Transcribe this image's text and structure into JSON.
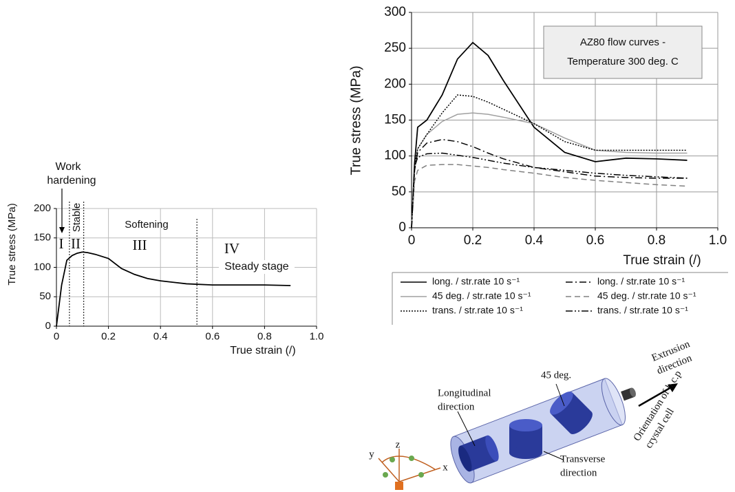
{
  "chart_data": [
    {
      "type": "line",
      "x_label": "True strain (/)",
      "y_label": "True stress (MPa)",
      "xlim": [
        0,
        1
      ],
      "ylim": [
        0,
        200
      ],
      "xticks": [
        0,
        0.2,
        0.4,
        0.6,
        0.8,
        {
          "value": 1,
          "label": "1.0"
        }
      ],
      "yticks": [
        0,
        50,
        100,
        150,
        200
      ],
      "grid": true,
      "x": [
        0,
        0.02,
        0.04,
        0.06,
        0.08,
        0.1,
        0.12,
        0.15,
        0.2,
        0.25,
        0.3,
        0.35,
        0.4,
        0.5,
        0.6,
        0.7,
        0.8,
        0.9
      ],
      "values": [
        0,
        70,
        112,
        120,
        124,
        126,
        125,
        122,
        115,
        98,
        88,
        81,
        77,
        72,
        70,
        70,
        70,
        69
      ],
      "color": "#000000",
      "boundaries": [
        0.05,
        0.105,
        0.54
      ],
      "annotations": [
        "Work",
        "hardening",
        "Stable",
        "Softening",
        "I",
        "II",
        "III",
        "IV",
        "Steady stage"
      ]
    },
    {
      "type": "line",
      "x_label": "True strain (/)",
      "y_label": "True stress (MPa)",
      "xlim": [
        0,
        1
      ],
      "ylim": [
        0,
        300
      ],
      "xticks": [
        0,
        0.2,
        0.4,
        0.6,
        0.8,
        {
          "value": 1,
          "label": "1.0"
        }
      ],
      "yticks": [
        0,
        50,
        100,
        150,
        200,
        250,
        300
      ],
      "grid": true,
      "annotations": [
        "AZ80 flow curves -",
        "Temperature 300 deg. C"
      ],
      "legend": "bottom",
      "x": [
        0,
        0.01,
        0.02,
        0.05,
        0.1,
        0.15,
        0.2,
        0.25,
        0.3,
        0.4,
        0.5,
        0.6,
        0.7,
        0.8,
        0.9
      ],
      "series": [
        {
          "name": "long. / str.rate 10 s⁻¹",
          "color": "#000000",
          "linestyle": "solid",
          "values": [
            0,
            90,
            140,
            150,
            185,
            235,
            258,
            240,
            205,
            140,
            105,
            92,
            97,
            96,
            94
          ]
        },
        {
          "name": "45 deg. / str.rate 10 s⁻¹",
          "color": "#a0a0a0",
          "linestyle": "solid",
          "values": [
            0,
            80,
            110,
            130,
            148,
            158,
            160,
            158,
            154,
            145,
            125,
            108,
            105,
            104,
            104
          ]
        },
        {
          "name": "trans. / str.rate 10 s⁻¹",
          "color": "#000000",
          "linestyle": "dotted",
          "values": [
            0,
            85,
            110,
            130,
            160,
            185,
            183,
            175,
            165,
            145,
            120,
            108,
            108,
            108,
            108
          ]
        },
        {
          "name": "long. / str.rate 10 s⁻¹",
          "color": "#000000",
          "linestyle": "dashdot",
          "values": [
            0,
            80,
            105,
            118,
            123,
            120,
            113,
            104,
            96,
            84,
            78,
            72,
            70,
            69,
            69
          ]
        },
        {
          "name": "45 deg. / str.rate 10 s⁻¹",
          "color": "#808080",
          "linestyle": "dashed",
          "values": [
            0,
            65,
            80,
            87,
            88,
            88,
            86,
            84,
            81,
            76,
            70,
            66,
            63,
            60,
            58
          ]
        },
        {
          "name": "trans. / str.rate 10 s⁻¹",
          "color": "#000000",
          "linestyle": "dashdotdot",
          "values": [
            0,
            85,
            98,
            103,
            104,
            101,
            98,
            94,
            90,
            84,
            80,
            76,
            73,
            71,
            69
          ]
        }
      ]
    }
  ],
  "diagram": {
    "labels": [
      [
        "Longitudinal",
        "direction"
      ],
      [
        "45 deg."
      ],
      [
        "Transverse",
        "direction"
      ],
      [
        "Extrusion",
        "direction"
      ],
      [
        "Orientation of h.c.p",
        "crystal cell"
      ]
    ],
    "axes": [
      "x",
      "y",
      "z"
    ]
  }
}
